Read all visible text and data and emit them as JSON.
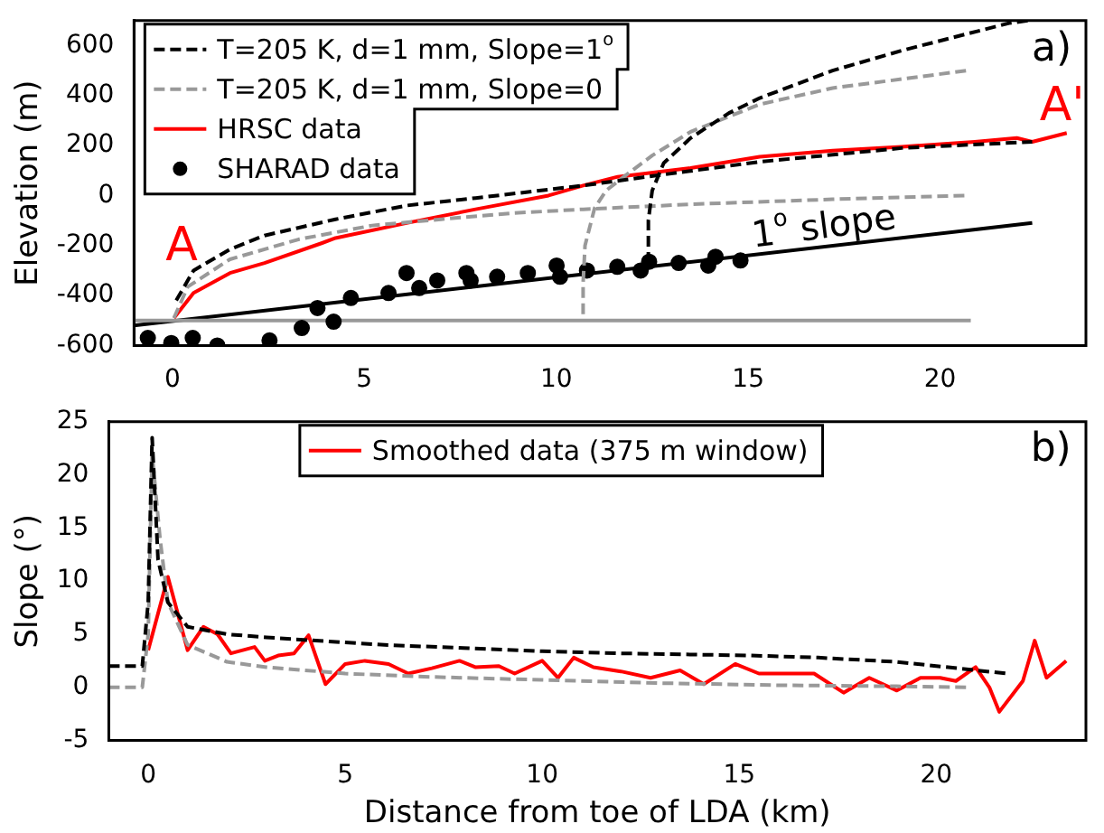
{
  "chart_data": [
    {
      "type": "line",
      "ylabel": "Elevation (m)",
      "xlim": [
        -1,
        23.8
      ],
      "xticks": [
        0,
        5,
        10,
        15,
        20
      ],
      "ylim": [
        -600,
        700
      ],
      "yticks": [
        -600,
        -400,
        -200,
        0,
        200,
        400,
        600
      ],
      "grid": false,
      "legend": "top left",
      "annotations": [
        "a)",
        "A",
        "A'",
        "1$^{o}$ slope"
      ],
      "series": [
        {
          "name": "T=205 K, d=1 mm, Slope=1$^{o}$",
          "color": "#000000",
          "line_style": "dashed",
          "marker": "none",
          "x": [
            0.1,
            0.55,
            1.5,
            2.4,
            4.25,
            6.1,
            7.9,
            10.7,
            12.6,
            15.3,
            19,
            22.4
          ],
          "values": [
            -420,
            -300,
            -215,
            -160,
            -95,
            -40,
            -10,
            40,
            80,
            135,
            190,
            215
          ]
        },
        {
          "color": "#000000",
          "line_style": "dashed",
          "marker": "none",
          "x": [
            12.4,
            12.4,
            12.5,
            12.8,
            13.5,
            14.5,
            15.3,
            17.2,
            19,
            21.8,
            22.3
          ],
          "values": [
            -270,
            -100,
            20,
            130,
            230,
            330,
            390,
            500,
            580,
            690,
            700
          ]
        },
        {
          "name": "T=205 K, d=1 mm, Slope=0",
          "color": "#999999",
          "line_style": "dashed",
          "marker": "none",
          "x": [
            0.04,
            0.4,
            1.5,
            3.3,
            5.2,
            7,
            8.9,
            10.7,
            13.5,
            17.2,
            20.7
          ],
          "values": [
            -490,
            -365,
            -255,
            -175,
            -120,
            -95,
            -70,
            -55,
            -35,
            -15,
            0
          ]
        },
        {
          "color": "#999999",
          "line_style": "dashed",
          "marker": "none",
          "x": [
            10.7,
            10.7,
            10.75,
            11,
            11.3,
            11.8,
            12.5,
            13.5,
            15.3,
            17.2,
            20.7
          ],
          "values": [
            -475,
            -350,
            -200,
            -50,
            20,
            80,
            160,
            255,
            365,
            430,
            500
          ]
        },
        {
          "name": "HRSC data",
          "color": "#ff0000",
          "line_style": "solid",
          "marker": "none",
          "x": [
            0.04,
            0.55,
            1.5,
            2.4,
            3.9,
            4.25,
            6.1,
            7.9,
            9.8,
            10.7,
            11.6,
            13.5,
            15.3,
            17.2,
            19,
            20.9,
            22,
            22.4,
            23.3
          ],
          "values": [
            -490,
            -390,
            -310,
            -270,
            -190,
            -170,
            -110,
            -55,
            0,
            40,
            75,
            110,
            155,
            180,
            195,
            215,
            230,
            215,
            250
          ]
        },
        {
          "name": "SHARAD data",
          "type": "scatter",
          "color": "#000000",
          "marker": "circle",
          "x": [
            -0.64,
            -0.03,
            0.53,
            1.17,
            2.53,
            3.37,
            3.78,
            4.2,
            4.65,
            5.63,
            6.1,
            6.43,
            6.9,
            7.66,
            7.77,
            8.46,
            9.26,
            10.01,
            10.1,
            10.8,
            11.59,
            12.2,
            12.42,
            13.19,
            13.96,
            14.15,
            14.8
          ],
          "values": [
            -570,
            -590,
            -570,
            -600,
            -580,
            -530,
            -450,
            -505,
            -410,
            -390,
            -310,
            -370,
            -340,
            -310,
            -340,
            -325,
            -310,
            -280,
            -325,
            -300,
            -285,
            -300,
            -265,
            -270,
            -280,
            -245,
            -260
          ]
        },
        {
          "color": "#999999",
          "line_style": "solid",
          "marker": "none",
          "x": [
            -1,
            20.8
          ],
          "values": [
            -500,
            -500
          ]
        },
        {
          "color": "#000000",
          "line_style": "solid",
          "marker": "none",
          "x": [
            -1,
            22.4
          ],
          "values": [
            -520,
            -110
          ]
        }
      ]
    },
    {
      "type": "line",
      "xlabel": "Distance from toe of LDA (km)",
      "ylabel": "Slope (°)",
      "xlim": [
        -1,
        23.8
      ],
      "xticks": [
        0,
        5,
        10,
        15,
        20
      ],
      "ylim": [
        -5,
        25
      ],
      "yticks": [
        -5,
        0,
        5,
        10,
        15,
        20,
        25
      ],
      "grid": false,
      "legend": "top",
      "annotations": [
        "b)"
      ],
      "series": [
        {
          "color": "#000000",
          "line_style": "dashed",
          "marker": "none",
          "x": [
            -1,
            -0.15,
            0,
            0.1,
            0.25,
            0.5,
            1,
            2,
            3,
            4.25,
            6,
            8,
            10,
            12,
            15.3,
            17,
            19,
            21.8
          ],
          "values": [
            2,
            2,
            8,
            23.5,
            12,
            8,
            5.7,
            5,
            4.7,
            4.4,
            4,
            3.7,
            3.4,
            3.2,
            3,
            2.8,
            2.4,
            1.3
          ]
        },
        {
          "color": "#999999",
          "line_style": "dashed",
          "marker": "none",
          "x": [
            -1,
            -0.15,
            0,
            0.1,
            0.3,
            0.5,
            1,
            2,
            3,
            5,
            7,
            10,
            13,
            16,
            19,
            20.8
          ],
          "values": [
            0,
            0,
            5,
            22,
            14,
            8,
            4,
            2.4,
            1.9,
            1.3,
            1,
            0.7,
            0.4,
            0.2,
            0.1,
            0
          ]
        },
        {
          "name": "Smoothed data (375 m window)",
          "color": "#ff0000",
          "line_style": "solid",
          "marker": "none",
          "x": [
            0,
            0.5,
            1,
            1.4,
            1.76,
            2.1,
            2.7,
            2.96,
            3.3,
            3.7,
            4.07,
            4.5,
            5,
            5.5,
            6.1,
            6.6,
            7.2,
            7.9,
            8.3,
            8.9,
            9.3,
            10,
            10.4,
            10.8,
            11.3,
            12,
            12.75,
            13.5,
            14.1,
            14.9,
            15.5,
            16.3,
            16.9,
            17.65,
            18.3,
            19,
            19.6,
            20.1,
            20.5,
            21,
            21.35,
            21.6,
            22.2,
            22.5,
            22.8,
            23.3
          ],
          "values": [
            3.5,
            10.4,
            3.5,
            5.7,
            5,
            3.2,
            3.8,
            2.5,
            3,
            3.2,
            4.9,
            0.3,
            2.2,
            2.5,
            2.2,
            1.3,
            1.8,
            2.5,
            1.9,
            2,
            1.3,
            2.5,
            0.9,
            2.8,
            1.9,
            1.5,
            0.9,
            1.6,
            0.3,
            2.2,
            1.3,
            1.3,
            1.3,
            -0.5,
            0.9,
            -0.3,
            0.9,
            0.9,
            0.6,
            1.9,
            0,
            -2.3,
            0.6,
            4.4,
            0.9,
            2.5
          ]
        }
      ]
    }
  ]
}
